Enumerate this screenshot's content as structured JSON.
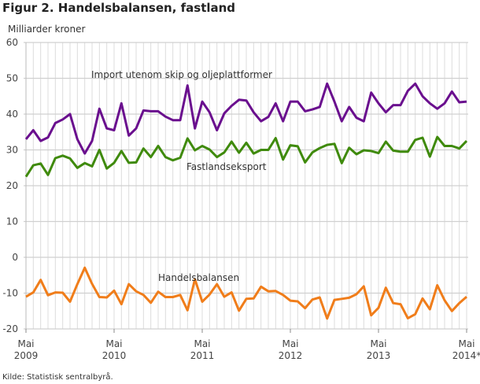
{
  "title": "Figur 2. Handelsbalansen, fastland",
  "source": "Kilde: Statistisk sentralbyrå.",
  "chart_data": {
    "type": "line",
    "title": "Figur 2. Handelsbalansen, fastland",
    "ylabel": "Milliarder kroner",
    "xlabel": "",
    "ylim": [
      -20,
      60
    ],
    "yticks": [
      60,
      50,
      40,
      30,
      20,
      10,
      0,
      -10,
      -20
    ],
    "x_start": "Mai 2009",
    "x_end": "Mai 2014",
    "frequency": "monthly",
    "xticks": [
      {
        "month": 0,
        "line1": "Mai",
        "line2": "2009"
      },
      {
        "month": 12,
        "line1": "Mai",
        "line2": "2010"
      },
      {
        "month": 24,
        "line1": "Mai",
        "line2": "2011"
      },
      {
        "month": 36,
        "line1": "Mai",
        "line2": "2012"
      },
      {
        "month": 48,
        "line1": "Mai",
        "line2": "2013"
      },
      {
        "month": 60,
        "line1": "Mai",
        "line2": "2014*"
      }
    ],
    "grid": true,
    "series": [
      {
        "name": "Import utenom skip og oljeplattformer",
        "color": "#6a0f8e",
        "values": [
          33,
          35.5,
          32.5,
          33.5,
          37.5,
          38.5,
          40,
          33,
          29,
          32.5,
          41.5,
          36,
          35.5,
          43,
          34,
          36,
          41,
          40.8,
          40.8,
          39.3,
          38.3,
          38.3,
          48,
          36,
          43.5,
          40.5,
          35.5,
          40.2,
          42.3,
          44,
          43.8,
          40.5,
          38,
          39.2,
          43,
          38,
          43.5,
          43.5,
          40.8,
          41.3,
          42,
          48.5,
          43.5,
          38,
          42,
          39,
          38,
          46,
          43,
          40.5,
          42.5,
          42.5,
          46.5,
          48.5,
          45,
          43,
          41.5,
          43,
          46.3,
          43.3,
          43.5
        ]
      },
      {
        "name": "Fastlandseksport",
        "color": "#3f8a0c",
        "values": [
          22.5,
          25.7,
          26.2,
          23,
          27.7,
          28.4,
          27.6,
          25,
          26.3,
          25.4,
          30,
          24.8,
          26.4,
          29.7,
          26.4,
          26.5,
          30.4,
          28,
          31.1,
          28,
          27.1,
          27.8,
          33.2,
          29.9,
          31.1,
          30.1,
          28,
          29.3,
          32.3,
          29.2,
          32,
          29,
          30,
          30,
          33.3,
          27.3,
          31.3,
          31,
          26.5,
          29.3,
          30.5,
          31.4,
          31.7,
          26.3,
          30.6,
          28.8,
          29.9,
          29.7,
          29.1,
          32.3,
          29.8,
          29.5,
          29.5,
          32.8,
          33.4,
          28.1,
          33.6,
          31.1,
          31.1,
          30.4,
          32.5
        ]
      },
      {
        "name": "Handelsbalansen",
        "color": "#f07d1a",
        "values": [
          -11,
          -9.8,
          -6.3,
          -10.6,
          -9.8,
          -9.9,
          -12.4,
          -7.5,
          -2.9,
          -7.4,
          -11.1,
          -11.2,
          -9.3,
          -13.1,
          -7.5,
          -9.5,
          -10.5,
          -12.7,
          -9.6,
          -11.1,
          -11.1,
          -10.5,
          -14.8,
          -6.1,
          -12.4,
          -10.4,
          -7.5,
          -11,
          -9.8,
          -14.9,
          -11.6,
          -11.5,
          -8.2,
          -9.5,
          -9.4,
          -10.5,
          -12.1,
          -12.3,
          -14.2,
          -11.8,
          -11.2,
          -17.1,
          -11.9,
          -11.6,
          -11.3,
          -10.3,
          -8.1,
          -16.2,
          -14.1,
          -8.5,
          -12.8,
          -13.1,
          -17,
          -15.9,
          -11.5,
          -14.5,
          -7.8,
          -12,
          -15,
          -12.8,
          -11
        ]
      }
    ]
  }
}
